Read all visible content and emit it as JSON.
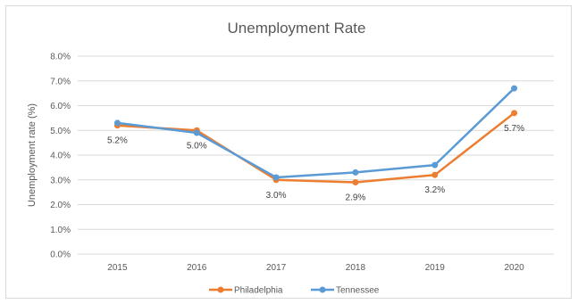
{
  "chart_data": {
    "type": "line",
    "title": "Unemployment Rate",
    "xlabel": "",
    "ylabel": "Unemployment rate (%)",
    "categories": [
      "2015",
      "2016",
      "2017",
      "2018",
      "2019",
      "2020"
    ],
    "ylim": [
      0,
      8
    ],
    "y_ticks": [
      "0.0%",
      "1.0%",
      "2.0%",
      "3.0%",
      "4.0%",
      "5.0%",
      "6.0%",
      "7.0%",
      "8.0%"
    ],
    "grid": true,
    "legend_position": "bottom",
    "series": [
      {
        "name": "Philadelphia",
        "color": "#ED7D31",
        "values": [
          5.2,
          5.0,
          3.0,
          2.9,
          3.2,
          5.7
        ],
        "data_labels": [
          "5.2%",
          "5.0%",
          "3.0%",
          "2.9%",
          "3.2%",
          "5.7%"
        ]
      },
      {
        "name": "Tennessee",
        "color": "#5B9BD5",
        "values": [
          5.3,
          4.9,
          3.1,
          3.3,
          3.6,
          6.7
        ]
      }
    ]
  }
}
